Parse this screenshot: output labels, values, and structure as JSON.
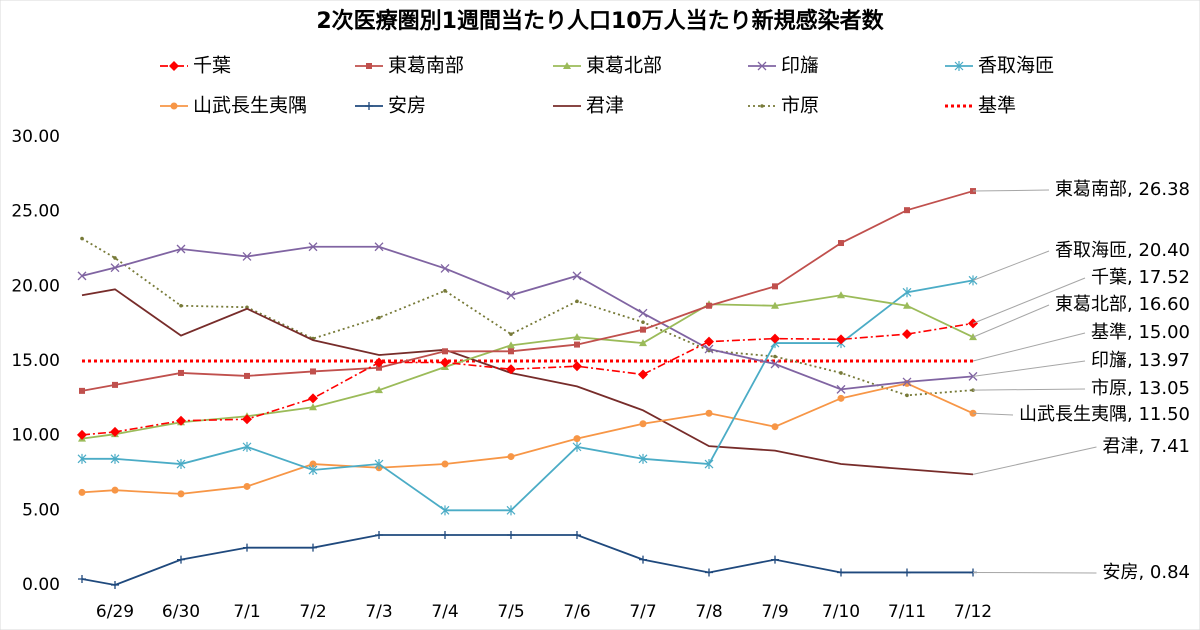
{
  "chart_data": {
    "type": "line",
    "title": "2次医療圏別1週間当たり人口10万人当たり新規感染者数",
    "categories": [
      null,
      "6/29",
      "6/30",
      "7/1",
      "7/2",
      "7/3",
      "7/4",
      "7/5",
      "7/6",
      "7/7",
      "7/8",
      "7/9",
      "7/10",
      "7/11",
      "7/12"
    ],
    "ylim": [
      0,
      30
    ],
    "yticks": [
      {
        "value": 0,
        "label": "0.00"
      },
      {
        "value": 5,
        "label": "5.00"
      },
      {
        "value": 10,
        "label": "10.00"
      },
      {
        "value": 15,
        "label": "15.00"
      },
      {
        "value": 20,
        "label": "20.00"
      },
      {
        "value": 25,
        "label": "25.00"
      },
      {
        "value": 30,
        "label": "30.00"
      }
    ],
    "series": [
      {
        "name": "千葉",
        "color": "#ff0000",
        "dash": "dashdot",
        "marker": "diamond",
        "end_label": "千葉, 17.52",
        "values": [
          10.05,
          10.25,
          11.0,
          11.1,
          12.5,
          14.9,
          14.9,
          14.45,
          14.65,
          14.1,
          16.3,
          16.5,
          16.45,
          16.8,
          17.52
        ]
      },
      {
        "name": "東葛南部",
        "color": "#c0504d",
        "dash": "solid",
        "marker": "square",
        "end_label": "東葛南部, 26.38",
        "values": [
          13.0,
          13.4,
          14.2,
          14.0,
          14.3,
          14.55,
          15.65,
          15.65,
          16.1,
          17.1,
          18.7,
          20.0,
          22.9,
          25.1,
          26.38
        ]
      },
      {
        "name": "東葛北部",
        "color": "#9bbb59",
        "dash": "solid",
        "marker": "triangle",
        "end_label": "東葛北部, 16.60",
        "values": [
          9.8,
          10.1,
          10.9,
          11.3,
          11.9,
          13.05,
          14.6,
          16.05,
          16.6,
          16.2,
          18.8,
          18.7,
          19.4,
          18.7,
          16.6
        ]
      },
      {
        "name": "印旛",
        "color": "#8064a2",
        "dash": "solid",
        "marker": "x",
        "end_label": "印旛, 13.97",
        "values": [
          20.7,
          21.25,
          22.5,
          22.0,
          22.65,
          22.65,
          21.2,
          19.4,
          20.7,
          18.2,
          15.8,
          14.8,
          13.1,
          13.6,
          13.97
        ]
      },
      {
        "name": "香取海匝",
        "color": "#4bacc6",
        "dash": "solid",
        "marker": "star",
        "end_label": "香取海匝, 20.40",
        "values": [
          8.45,
          8.45,
          8.1,
          9.25,
          7.7,
          8.1,
          5.0,
          5.0,
          9.25,
          8.45,
          8.1,
          16.2,
          16.2,
          19.6,
          20.4
        ]
      },
      {
        "name": "山武長生夷隅",
        "color": "#f79646",
        "dash": "solid",
        "marker": "circle",
        "end_label": "山武長生夷隅, 11.50",
        "values": [
          6.2,
          6.35,
          6.1,
          6.6,
          8.1,
          7.85,
          8.1,
          8.6,
          9.8,
          10.8,
          11.5,
          10.6,
          12.5,
          13.5,
          11.5
        ]
      },
      {
        "name": "安房",
        "color": "#1f497d",
        "dash": "solid",
        "marker": "plus",
        "end_label": "安房, 0.84",
        "values": [
          0.4,
          0.0,
          1.7,
          2.5,
          2.5,
          3.35,
          3.35,
          3.35,
          3.35,
          1.7,
          0.84,
          1.7,
          0.84,
          0.84,
          0.84
        ]
      },
      {
        "name": "君津",
        "color": "#772c2a",
        "dash": "solid",
        "marker": "none",
        "end_label": "君津, 7.41",
        "values": [
          19.4,
          19.8,
          16.7,
          18.5,
          16.4,
          15.4,
          15.75,
          14.2,
          13.3,
          11.7,
          9.3,
          9.0,
          8.1,
          7.75,
          7.41
        ]
      },
      {
        "name": "市原",
        "color": "#777a38",
        "dash": "dotted",
        "marker": "dot",
        "end_label": "市原, 13.05",
        "values": [
          23.2,
          21.9,
          18.7,
          18.6,
          16.5,
          17.9,
          19.7,
          16.8,
          19.0,
          17.6,
          15.7,
          15.3,
          14.2,
          12.7,
          13.05
        ]
      }
    ],
    "reference": {
      "name": "基準",
      "value": 15,
      "color": "#ff0000",
      "end_label": "基準, 15.00"
    }
  }
}
